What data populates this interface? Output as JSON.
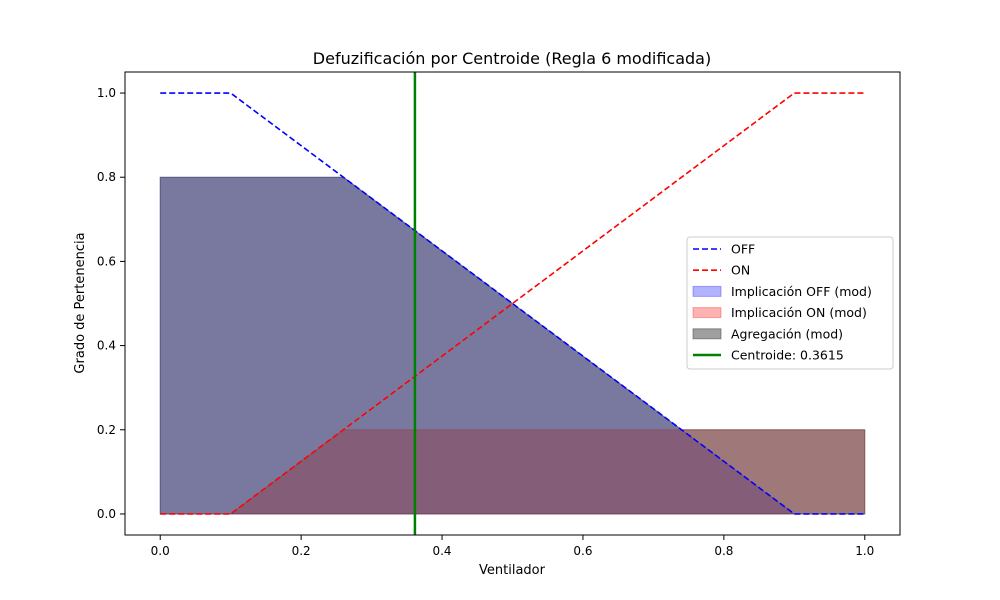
{
  "chart_data": {
    "type": "line",
    "title": "Defuzificación por Centroide (Regla 6 modificada)",
    "xlabel": "Ventilador",
    "ylabel": "Grado de Pertenencia",
    "xlim": [
      -0.05,
      1.05
    ],
    "ylim": [
      -0.05,
      1.05
    ],
    "xticks": [
      0.0,
      0.2,
      0.4,
      0.6,
      0.8,
      1.0
    ],
    "yticks": [
      0.0,
      0.2,
      0.4,
      0.6,
      0.8,
      1.0
    ],
    "xtick_labels": [
      "0.0",
      "0.2",
      "0.4",
      "0.6",
      "0.8",
      "1.0"
    ],
    "ytick_labels": [
      "0.0",
      "0.2",
      "0.4",
      "0.6",
      "0.8",
      "1.0"
    ],
    "grid": false,
    "legend_position": "center-right",
    "series": [
      {
        "name": "OFF",
        "kind": "line",
        "style": "dashed",
        "color": "#0000ff",
        "x": [
          0.0,
          0.1,
          0.9,
          1.0
        ],
        "y": [
          1.0,
          1.0,
          0.0,
          0.0
        ]
      },
      {
        "name": "ON",
        "kind": "line",
        "style": "dashed",
        "color": "#ff0000",
        "x": [
          0.0,
          0.1,
          0.9,
          1.0
        ],
        "y": [
          0.0,
          0.0,
          1.0,
          1.0
        ]
      },
      {
        "name": "Implicación OFF (mod)",
        "kind": "fill",
        "color": "#0000ff",
        "opacity": 0.3,
        "x": [
          0.0,
          0.26,
          0.9,
          1.0
        ],
        "y": [
          0.8,
          0.8,
          0.0,
          0.0
        ]
      },
      {
        "name": "Implicación ON (mod)",
        "kind": "fill",
        "color": "#ff0000",
        "opacity": 0.3,
        "x": [
          0.0,
          0.1,
          0.26,
          1.0
        ],
        "y": [
          0.0,
          0.0,
          0.2,
          0.2
        ]
      },
      {
        "name": "Agregación (mod)",
        "kind": "fill",
        "color": "#404040",
        "opacity": 0.5,
        "x": [
          0.0,
          0.26,
          0.74,
          1.0
        ],
        "y": [
          0.8,
          0.8,
          0.2,
          0.2
        ]
      },
      {
        "name": "Centroide: 0.3615",
        "kind": "vline",
        "color": "#008000",
        "x": 0.3615
      }
    ]
  }
}
